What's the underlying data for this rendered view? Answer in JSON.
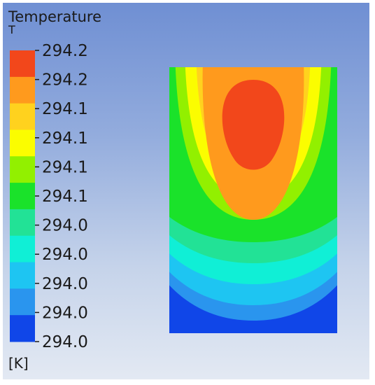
{
  "legend": {
    "title": "Temperature",
    "variable": "T",
    "unit": "[K]",
    "tick_labels": [
      "294.2",
      "294.2",
      "294.1",
      "294.1",
      "294.1",
      "294.1",
      "294.0",
      "294.0",
      "294.0",
      "294.0",
      "294.0"
    ],
    "colors": [
      "#f2471b",
      "#ff9a1d",
      "#ffd21e",
      "#fbfd00",
      "#92f000",
      "#1ae22a",
      "#22e296",
      "#10efd6",
      "#1ec5f2",
      "#2a95ee",
      "#1046e8"
    ]
  },
  "chart_data": {
    "type": "heatmap",
    "title": "Temperature",
    "colorbar_label": "T",
    "unit": "[K]",
    "color_levels": [
      {
        "label": "294.2",
        "color": "#f2471b"
      },
      {
        "label": "294.2",
        "color": "#ff9a1d"
      },
      {
        "label": "294.1",
        "color": "#ffd21e"
      },
      {
        "label": "294.1",
        "color": "#fbfd00"
      },
      {
        "label": "294.1",
        "color": "#92f000"
      },
      {
        "label": "294.1",
        "color": "#1ae22a"
      },
      {
        "label": "294.0",
        "color": "#22e296"
      },
      {
        "label": "294.0",
        "color": "#10efd6"
      },
      {
        "label": "294.0",
        "color": "#1ec5f2"
      },
      {
        "label": "294.0",
        "color": "#2a95ee"
      },
      {
        "label": "294.0",
        "color": "#1046e8"
      }
    ],
    "colorbar_min": "294.0",
    "colorbar_max": "294.2",
    "grid": false,
    "legend_position": "left"
  }
}
